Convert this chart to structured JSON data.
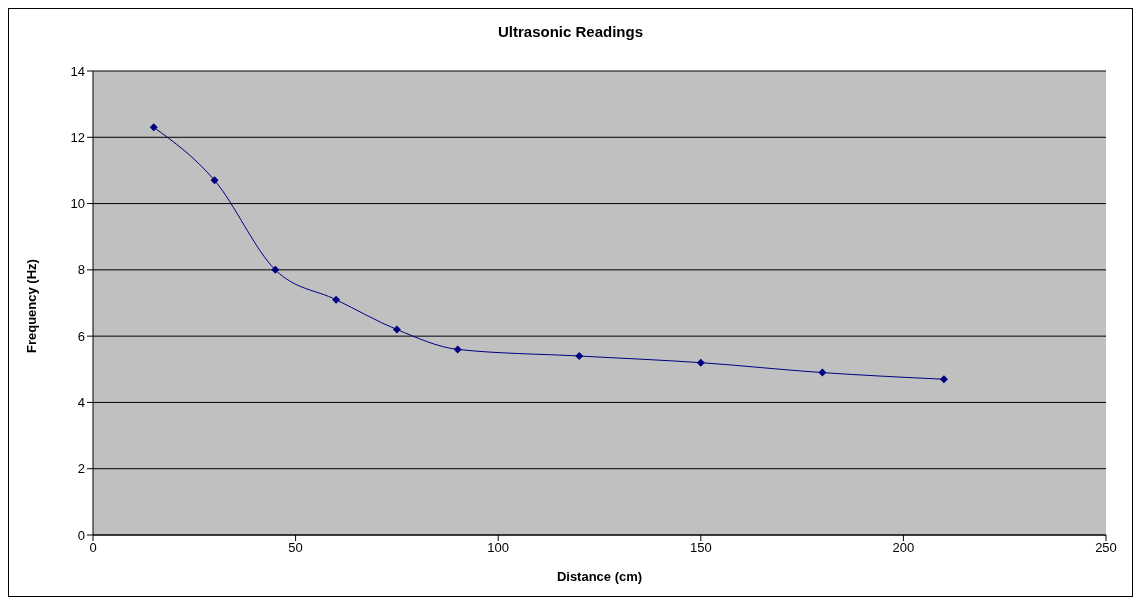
{
  "chart_data": {
    "type": "line",
    "title": "Ultrasonic Readings",
    "xlabel": "Distance (cm)",
    "ylabel": "Frequency (Hz)",
    "x": [
      15,
      30,
      45,
      60,
      75,
      90,
      120,
      150,
      180,
      210
    ],
    "series": [
      {
        "color": "#000080",
        "values": [
          12.3,
          10.7,
          8.0,
          7.1,
          6.2,
          5.6,
          5.4,
          5.2,
          4.9,
          4.7
        ]
      }
    ],
    "xlim": [
      0,
      250
    ],
    "xticks": [
      0,
      50,
      100,
      150,
      200,
      250
    ],
    "ylim": [
      0,
      14
    ],
    "yticks": [
      0,
      2,
      4,
      6,
      8,
      10,
      12,
      14
    ],
    "grid": "y",
    "legend": false,
    "marker": "diamond",
    "line_style": "solid"
  }
}
